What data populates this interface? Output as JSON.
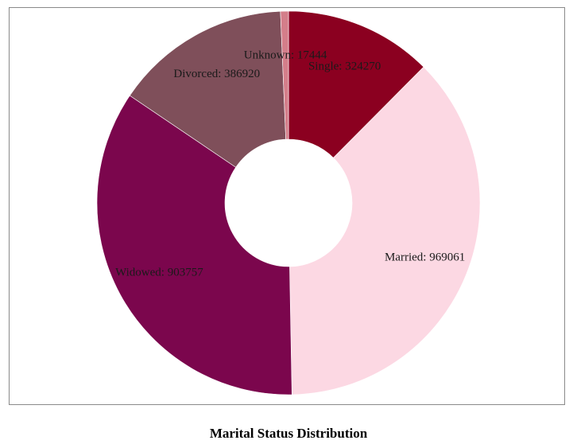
{
  "chart_data": {
    "type": "pie",
    "subtype": "donut",
    "title": "Marital Status Distribution",
    "categories": [
      "Single",
      "Married",
      "Widowed",
      "Divorced",
      "Unknown"
    ],
    "values": [
      324270,
      969061,
      903757,
      386920,
      17444
    ],
    "colors": [
      "#8b0020",
      "#fcd8e3",
      "#7b064d",
      "#7f4f5a",
      "#d47e8a"
    ],
    "labels": [
      "Single: 324270",
      "Married: 969061",
      "Widowed: 903757",
      "Divorced: 386920",
      "Unknown: 17444"
    ],
    "start_angle_deg": 0,
    "direction": "clockwise",
    "legend": "none",
    "frame_border_color": "#8a8a8a"
  }
}
